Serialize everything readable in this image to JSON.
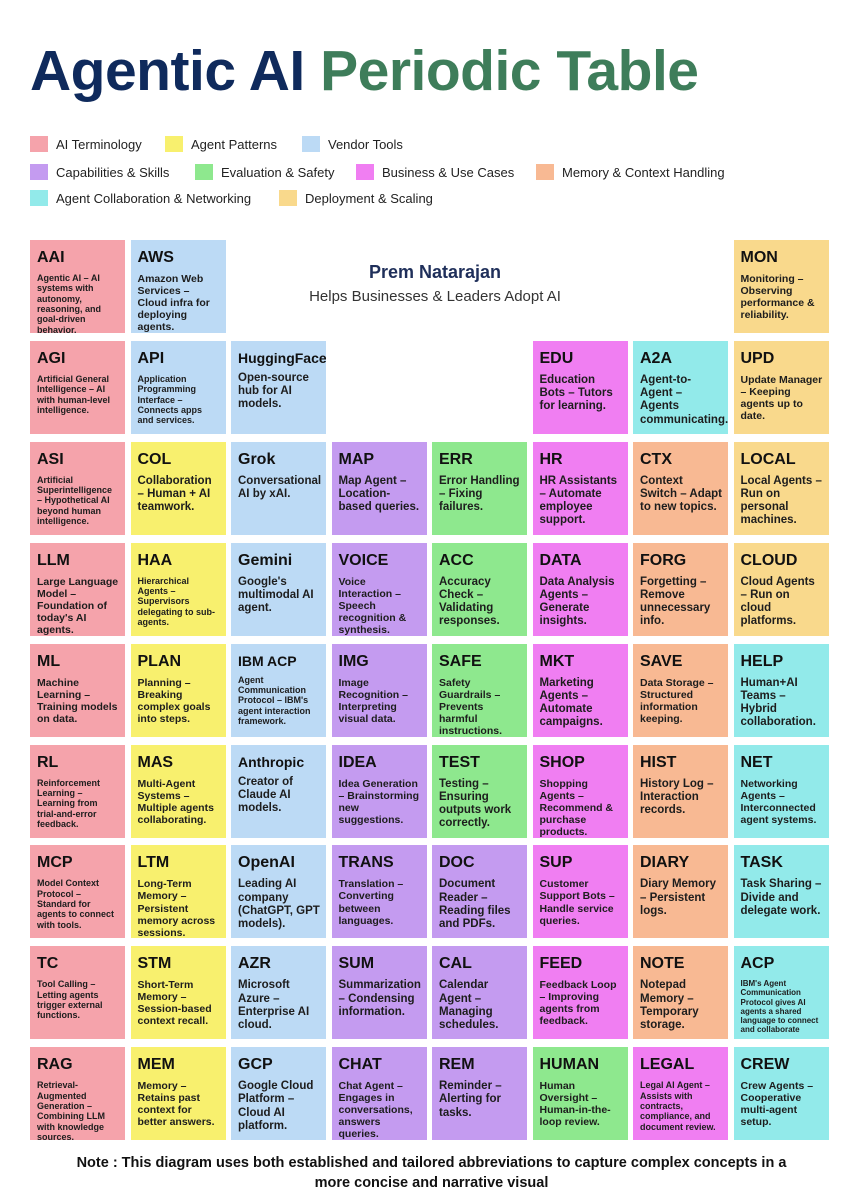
{
  "header": {
    "title_part1": "Agentic AI",
    "title_part2": "Periodic Table"
  },
  "legend": [
    [
      {
        "label": "AI Terminology",
        "color": "#f5a3ab"
      },
      {
        "label": "Agent Patterns",
        "color": "#f8f06e"
      },
      {
        "label": "Vendor Tools",
        "color": "#bcdaf5"
      }
    ],
    [
      {
        "label": "Capabilities & Skills",
        "color": "#c49bf0"
      },
      {
        "label": "Evaluation & Safety",
        "color": "#8ee88e"
      },
      {
        "label": "Business & Use Cases",
        "color": "#f07ef2"
      },
      {
        "label": "Memory & Context Handling",
        "color": "#f8b993"
      }
    ],
    [
      {
        "label": "Agent Collaboration & Networking",
        "color": "#92eaea"
      },
      {
        "label": "Deployment & Scaling",
        "color": "#f9d98c"
      }
    ]
  ],
  "author": {
    "name": "Prem Natarajan",
    "tagline": "Helps Businesses & Leaders Adopt AI"
  },
  "table": {
    "rows": [
      [
        {
          "symbol": "AAI",
          "text": "Agentic AI – AI systems with autonomy, reasoning, and goal-driven behavior.",
          "color": "#f5a3ab"
        },
        {
          "symbol": "AWS",
          "text": "Amazon Web Services – Cloud infra for deploying agents.",
          "color": "#bcdaf5"
        },
        null,
        null,
        null,
        null,
        null,
        {
          "symbol": "MON",
          "text": "Monitoring – Observing performance & reliability.",
          "color": "#f9d98c"
        }
      ],
      [
        {
          "symbol": "AGI",
          "text": "Artificial General Intelligence – AI with human-level intelligence.",
          "color": "#f5a3ab"
        },
        {
          "symbol": "API",
          "text": "Application Programming Interface – Connects apps and services.",
          "color": "#bcdaf5"
        },
        {
          "symbol": "HuggingFace",
          "text": "Open-source hub for AI models.",
          "color": "#bcdaf5"
        },
        null,
        null,
        {
          "symbol": "EDU",
          "text": "Education Bots – Tutors for learning.",
          "color": "#f07ef2"
        },
        {
          "symbol": "A2A",
          "text": "Agent-to-Agent – Agents communicating.",
          "color": "#92eaea"
        },
        {
          "symbol": "UPD",
          "text": "Update Manager – Keeping agents up to date.",
          "color": "#f9d98c"
        }
      ],
      [
        {
          "symbol": "ASI",
          "text": "Artificial Superintelligence – Hypothetical AI beyond human intelligence.",
          "color": "#f5a3ab"
        },
        {
          "symbol": "COL",
          "text": "Collaboration – Human + AI teamwork.",
          "color": "#f8f06e"
        },
        {
          "symbol": "Grok",
          "text": "Conversational AI by xAI.",
          "color": "#bcdaf5"
        },
        {
          "symbol": "MAP",
          "text": "Map Agent – Location-based queries.",
          "color": "#c49bf0"
        },
        {
          "symbol": "ERR",
          "text": "Error Handling – Fixing failures.",
          "color": "#8ee88e"
        },
        {
          "symbol": "HR",
          "text": "HR Assistants – Automate employee support.",
          "color": "#f07ef2"
        },
        {
          "symbol": "CTX",
          "text": "Context Switch – Adapt to new topics.",
          "color": "#f8b993"
        },
        {
          "symbol": "LOCAL",
          "text": "Local Agents – Run on personal machines.",
          "color": "#f9d98c"
        }
      ],
      [
        {
          "symbol": "LLM",
          "text": "Large Language Model – Foundation of today's AI agents.",
          "color": "#f5a3ab"
        },
        {
          "symbol": "HAA",
          "text": "Hierarchical Agents – Supervisors delegating to sub-agents.",
          "color": "#f8f06e"
        },
        {
          "symbol": "Gemini",
          "text": "Google's multimodal AI agent.",
          "color": "#bcdaf5"
        },
        {
          "symbol": "VOICE",
          "text": "Voice Interaction – Speech recognition & synthesis.",
          "color": "#c49bf0"
        },
        {
          "symbol": "ACC",
          "text": "Accuracy Check – Validating responses.",
          "color": "#8ee88e"
        },
        {
          "symbol": "DATA",
          "text": "Data Analysis Agents – Generate insights.",
          "color": "#f07ef2"
        },
        {
          "symbol": "FORG",
          "text": "Forgetting – Remove unnecessary info.",
          "color": "#f8b993"
        },
        {
          "symbol": "CLOUD",
          "text": "Cloud Agents – Run on cloud platforms.",
          "color": "#f9d98c"
        }
      ],
      [
        {
          "symbol": "ML",
          "text": "Machine Learning – Training models on data.",
          "color": "#f5a3ab"
        },
        {
          "symbol": "PLAN",
          "text": "Planning – Breaking complex goals into steps.",
          "color": "#f8f06e"
        },
        {
          "symbol": "IBM ACP",
          "text": "Agent Communication Protocol – IBM's agent interaction framework.",
          "color": "#bcdaf5"
        },
        {
          "symbol": "IMG",
          "text": "Image Recognition – Interpreting visual data.",
          "color": "#c49bf0"
        },
        {
          "symbol": "SAFE",
          "text": "Safety Guardrails – Prevents harmful instructions.",
          "color": "#8ee88e"
        },
        {
          "symbol": "MKT",
          "text": "Marketing Agents – Automate campaigns.",
          "color": "#f07ef2"
        },
        {
          "symbol": "SAVE",
          "text": "Data Storage – Structured information keeping.",
          "color": "#f8b993"
        },
        {
          "symbol": "HELP",
          "text": "Human+AI Teams – Hybrid collaboration.",
          "color": "#92eaea"
        }
      ],
      [
        {
          "symbol": "RL",
          "text": "Reinforcement Learning – Learning from trial-and-error feedback.",
          "color": "#f5a3ab"
        },
        {
          "symbol": "MAS",
          "text": "Multi-Agent Systems – Multiple agents collaborating.",
          "color": "#f8f06e"
        },
        {
          "symbol": "Anthropic",
          "text": "Creator of Claude AI models.",
          "color": "#bcdaf5"
        },
        {
          "symbol": "IDEA",
          "text": "Idea Generation – Brainstorming new suggestions.",
          "color": "#c49bf0"
        },
        {
          "symbol": "TEST",
          "text": "Testing – Ensuring outputs work correctly.",
          "color": "#8ee88e"
        },
        {
          "symbol": "SHOP",
          "text": "Shopping Agents – Recommend & purchase products.",
          "color": "#f07ef2"
        },
        {
          "symbol": "HIST",
          "text": "History Log – Interaction records.",
          "color": "#f8b993"
        },
        {
          "symbol": "NET",
          "text": "Networking Agents – Interconnected agent systems.",
          "color": "#92eaea"
        }
      ],
      [
        {
          "symbol": "MCP",
          "text": "Model Context Protocol – Standard for agents to connect with tools.",
          "color": "#f5a3ab"
        },
        {
          "symbol": "LTM",
          "text": "Long-Term Memory – Persistent memory across sessions.",
          "color": "#f8f06e"
        },
        {
          "symbol": "OpenAI",
          "text": "Leading AI company (ChatGPT, GPT models).",
          "color": "#bcdaf5"
        },
        {
          "symbol": "TRANS",
          "text": "Translation – Converting between languages.",
          "color": "#c49bf0"
        },
        {
          "symbol": "DOC",
          "text": "Document Reader – Reading files and PDFs.",
          "color": "#c49bf0"
        },
        {
          "symbol": "SUP",
          "text": "Customer Support Bots – Handle service queries.",
          "color": "#f07ef2"
        },
        {
          "symbol": "DIARY",
          "text": "Diary Memory – Persistent logs.",
          "color": "#f8b993"
        },
        {
          "symbol": "TASK",
          "text": "Task Sharing – Divide and delegate work.",
          "color": "#92eaea"
        }
      ],
      [
        {
          "symbol": "TC",
          "text": "Tool Calling – Letting agents trigger external functions.",
          "color": "#f5a3ab"
        },
        {
          "symbol": "STM",
          "text": "Short-Term Memory – Session-based context recall.",
          "color": "#f8f06e"
        },
        {
          "symbol": "AZR",
          "text": "Microsoft Azure – Enterprise AI cloud.",
          "color": "#bcdaf5"
        },
        {
          "symbol": "SUM",
          "text": "Summarization – Condensing information.",
          "color": "#c49bf0"
        },
        {
          "symbol": "CAL",
          "text": "Calendar Agent – Managing schedules.",
          "color": "#c49bf0"
        },
        {
          "symbol": "FEED",
          "text": "Feedback Loop – Improving agents from feedback.",
          "color": "#f07ef2"
        },
        {
          "symbol": "NOTE",
          "text": "Notepad Memory – Temporary storage.",
          "color": "#f8b993"
        },
        {
          "symbol": "ACP",
          "text": "IBM's Agent Communication Protocol gives AI agents a shared language to connect and collaborate",
          "color": "#92eaea"
        }
      ],
      [
        {
          "symbol": "RAG",
          "text": "Retrieval-Augmented Generation – Combining LLM with knowledge sources.",
          "color": "#f5a3ab"
        },
        {
          "symbol": "MEM",
          "text": "Memory – Retains past context for better answers.",
          "color": "#f8f06e"
        },
        {
          "symbol": "GCP",
          "text": "Google Cloud Platform – Cloud AI platform.",
          "color": "#bcdaf5"
        },
        {
          "symbol": "CHAT",
          "text": "Chat Agent – Engages in conversations, answers queries.",
          "color": "#c49bf0"
        },
        {
          "symbol": "REM",
          "text": "Reminder – Alerting for tasks.",
          "color": "#c49bf0"
        },
        {
          "symbol": "HUMAN",
          "text": "Human Oversight – Human-in-the-loop review.",
          "color": "#8ee88e"
        },
        {
          "symbol": "LEGAL",
          "text": "Legal AI Agent – Assists with contracts, compliance, and document review.",
          "color": "#f07ef2"
        },
        {
          "symbol": "CREW",
          "text": "Crew Agents – Cooperative multi-agent setup.",
          "color": "#92eaea"
        }
      ]
    ]
  },
  "note": "Note : This diagram uses both established and tailored abbreviations to capture complex concepts in a more concise and narrative visual"
}
